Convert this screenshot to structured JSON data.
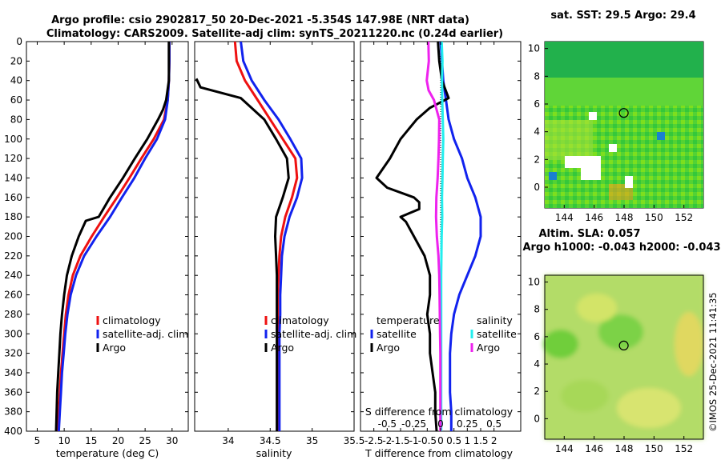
{
  "title_line1": "Argo profile: csio 2902817_50 20-Dec-2021 -5.354S 147.98E (NRT data)",
  "title_line2": "Climatology: CARS2009. Satellite-adj clim: synTS_20211220.nc (0.24d earlier)",
  "sst_title": "sat. SST: 29.5 Argo: 29.4",
  "altim_title1": "Altim. SLA: 0.057",
  "altim_title2": "Argo h1000: -0.043 h2000: -0.043",
  "copyright": "©IMOS 25-Dec-2021 11:41:35",
  "colors": {
    "climatology": "#ee1111",
    "satellite": "#1122ee",
    "argo": "#000000",
    "sat_salinity": "#22eeee",
    "argo_salinity": "#ee22ee"
  },
  "chart_data": [
    {
      "type": "line",
      "name": "temperature",
      "xlabel": "temperature (deg C)",
      "ylabel": "depth",
      "xlim": [
        3,
        33
      ],
      "ylim": [
        0,
        400
      ],
      "xticks": [
        5,
        10,
        15,
        20,
        25,
        30
      ],
      "yticks": [
        0,
        20,
        40,
        60,
        80,
        100,
        120,
        140,
        160,
        180,
        200,
        220,
        240,
        260,
        280,
        300,
        320,
        340,
        360,
        380,
        400
      ],
      "legend": [
        "climatology",
        "satellite-adj. clim",
        "Argo"
      ],
      "series": [
        {
          "name": "climatology",
          "color_key": "climatology",
          "depth": [
            0,
            20,
            40,
            60,
            80,
            100,
            120,
            140,
            160,
            180,
            200,
            220,
            240,
            260,
            280,
            300,
            320,
            340,
            360,
            380,
            400
          ],
          "values": [
            29.5,
            29.5,
            29.4,
            29.2,
            28.5,
            26.6,
            24.3,
            22.1,
            19.8,
            17.4,
            15.1,
            13.0,
            11.6,
            10.8,
            10.3,
            10.0,
            9.7,
            9.4,
            9.2,
            9.0,
            8.8
          ]
        },
        {
          "name": "satellite-adj. clim",
          "color_key": "satellite",
          "depth": [
            0,
            20,
            40,
            60,
            80,
            100,
            120,
            140,
            160,
            180,
            200,
            220,
            240,
            260,
            280,
            300,
            320,
            340,
            360,
            380,
            400
          ],
          "values": [
            29.5,
            29.5,
            29.4,
            29.2,
            28.7,
            27.2,
            25.0,
            23.0,
            20.7,
            18.5,
            16.0,
            13.7,
            12.2,
            11.2,
            10.6,
            10.2,
            9.9,
            9.6,
            9.4,
            9.2,
            9.0
          ]
        },
        {
          "name": "Argo",
          "color_key": "argo",
          "depth": [
            0,
            20,
            40,
            60,
            70,
            80,
            100,
            120,
            140,
            160,
            180,
            184,
            200,
            220,
            240,
            260,
            280,
            300,
            320,
            340,
            360,
            380,
            400
          ],
          "values": [
            29.4,
            29.4,
            29.4,
            28.9,
            28.3,
            27.4,
            25.4,
            23.1,
            20.9,
            18.5,
            16.4,
            14.0,
            12.7,
            11.4,
            10.5,
            10.0,
            9.6,
            9.3,
            9.1,
            8.9,
            8.7,
            8.6,
            8.5
          ]
        }
      ]
    },
    {
      "type": "line",
      "name": "salinity",
      "xlabel": "salinity",
      "ylim": [
        0,
        400
      ],
      "xlim": [
        33.6,
        35.5
      ],
      "xticks": [
        34,
        34.5,
        35,
        35.5
      ],
      "tick_labels": [
        "34",
        "34.5",
        "35",
        "35.5"
      ],
      "legend": [
        "climatology",
        "satellite-adj. clim",
        "Argo"
      ],
      "series": [
        {
          "name": "climatology",
          "color_key": "climatology",
          "depth": [
            0,
            20,
            40,
            60,
            80,
            100,
            120,
            140,
            160,
            180,
            200,
            220,
            240,
            260,
            280,
            300,
            320,
            340,
            360,
            380,
            400
          ],
          "values": [
            34.08,
            34.1,
            34.2,
            34.35,
            34.5,
            34.65,
            34.8,
            34.82,
            34.76,
            34.68,
            34.63,
            34.61,
            34.6,
            34.59,
            34.59,
            34.59,
            34.59,
            34.59,
            34.59,
            34.59,
            34.59
          ]
        },
        {
          "name": "satellite-adj. clim",
          "color_key": "satellite",
          "depth": [
            0,
            20,
            40,
            60,
            80,
            100,
            120,
            140,
            160,
            180,
            200,
            220,
            240,
            260,
            280,
            300,
            320,
            340,
            360,
            380,
            400
          ],
          "values": [
            34.15,
            34.18,
            34.28,
            34.43,
            34.6,
            34.74,
            34.87,
            34.88,
            34.82,
            34.73,
            34.67,
            34.64,
            34.63,
            34.62,
            34.62,
            34.61,
            34.61,
            34.61,
            34.61,
            34.61,
            34.61
          ]
        },
        {
          "name": "Argo",
          "color_key": "argo",
          "depth": [
            38,
            47,
            58,
            80,
            100,
            120,
            140,
            160,
            180,
            200,
            220,
            240,
            260,
            280,
            300,
            320,
            340,
            360,
            380,
            400
          ],
          "values": [
            33.62,
            33.67,
            34.15,
            34.43,
            34.57,
            34.7,
            34.72,
            34.65,
            34.57,
            34.56,
            34.57,
            34.58,
            34.58,
            34.58,
            34.58,
            34.58,
            34.58,
            34.58,
            34.58,
            34.58
          ]
        }
      ]
    },
    {
      "type": "line",
      "name": "differences",
      "xlabel": "T difference from climatology",
      "top_label": "S difference from climatology",
      "xlim": [
        -3,
        3
      ],
      "ylim": [
        0,
        400
      ],
      "xticks": [
        -2.5,
        -2,
        -1.5,
        -1,
        -0.5,
        0,
        0.5,
        1,
        1.5,
        2
      ],
      "tick_labels": [
        "-2.5",
        "-2",
        "-1.5",
        "-1",
        "-0.5",
        "0",
        "0.5",
        "1",
        "1.5",
        "2"
      ],
      "top_ticks": [
        -0.5,
        -0.25,
        0,
        0.25,
        0.5
      ],
      "top_tick_labels": [
        "-0.5",
        "-0.25",
        "0",
        "0.25",
        "0.5"
      ],
      "legend_left_title": "temperature",
      "legend_left": [
        "satellite",
        "Argo"
      ],
      "legend_right_title": "salinity",
      "legend_right": [
        "satellite",
        "Argo"
      ],
      "series": [
        {
          "name": "T satellite",
          "color_key": "satellite",
          "depth": [
            0,
            20,
            40,
            60,
            80,
            100,
            120,
            140,
            160,
            180,
            200,
            220,
            240,
            260,
            280,
            300,
            320,
            340,
            360,
            380,
            400
          ],
          "values": [
            0.0,
            0.05,
            0.1,
            0.2,
            0.3,
            0.5,
            0.8,
            1.0,
            1.3,
            1.5,
            1.5,
            1.3,
            1.0,
            0.7,
            0.5,
            0.4,
            0.35,
            0.35,
            0.35,
            0.4,
            0.4
          ]
        },
        {
          "name": "T Argo",
          "color_key": "argo",
          "depth": [
            0,
            20,
            40,
            58,
            68,
            80,
            100,
            120,
            140,
            150,
            160,
            165,
            172,
            180,
            185,
            200,
            220,
            240,
            260,
            280,
            300,
            320,
            340,
            360,
            380,
            400
          ],
          "values": [
            -0.1,
            -0.05,
            0.05,
            0.3,
            -0.4,
            -0.9,
            -1.5,
            -1.9,
            -2.4,
            -2.0,
            -1.0,
            -0.8,
            -0.8,
            -1.5,
            -1.3,
            -1.0,
            -0.6,
            -0.4,
            -0.4,
            -0.5,
            -0.4,
            -0.4,
            -0.3,
            -0.2,
            -0.2,
            -0.15
          ]
        },
        {
          "name": "S satellite",
          "color_key": "sat_salinity",
          "depth": [
            0,
            20,
            40,
            60,
            80,
            100,
            120,
            140,
            160,
            180,
            200,
            220,
            240,
            260,
            280,
            300,
            320,
            340,
            360,
            380,
            400
          ],
          "values": [
            0.04,
            0.07,
            0.05,
            0.06,
            0.08,
            0.1,
            0.08,
            0.07,
            0.05,
            0.06,
            0.04,
            0.03,
            0.02,
            0.02,
            0.02,
            0.02,
            0.02,
            0.02,
            0.02,
            0.02,
            0.02
          ]
        },
        {
          "name": "S Argo",
          "color_key": "argo_salinity",
          "depth": [
            0,
            20,
            40,
            50,
            60,
            80,
            100,
            120,
            140,
            160,
            180,
            200,
            220,
            240,
            260,
            280,
            300,
            320,
            340,
            360,
            380,
            400
          ],
          "values": [
            -0.46,
            -0.44,
            -0.52,
            -0.45,
            -0.25,
            -0.05,
            -0.06,
            -0.08,
            -0.11,
            -0.16,
            -0.17,
            -0.14,
            -0.08,
            -0.05,
            -0.04,
            -0.03,
            -0.02,
            -0.01,
            -0.01,
            -0.01,
            -0.01,
            -0.01
          ]
        }
      ]
    },
    {
      "type": "heatmap",
      "name": "sat-sst-map",
      "title": "sat. SST: 29.5 Argo: 29.4",
      "xlim": [
        142.7,
        153.3
      ],
      "ylim": [
        -1.5,
        10.5
      ],
      "xticks": [
        144,
        146,
        148,
        150,
        152
      ],
      "yticks": [
        0,
        2,
        4,
        6,
        8,
        10
      ],
      "marker": {
        "lon": 147.98,
        "lat": 5.354
      }
    },
    {
      "type": "heatmap",
      "name": "altimetry-sla-map",
      "title": "Altim. SLA: 0.057",
      "xlim": [
        142.7,
        153.3
      ],
      "ylim": [
        -1.5,
        10.5
      ],
      "xticks": [
        144,
        146,
        148,
        150,
        152
      ],
      "yticks": [
        0,
        2,
        4,
        6,
        8,
        10
      ],
      "marker": {
        "lon": 147.98,
        "lat": 5.354
      }
    }
  ]
}
